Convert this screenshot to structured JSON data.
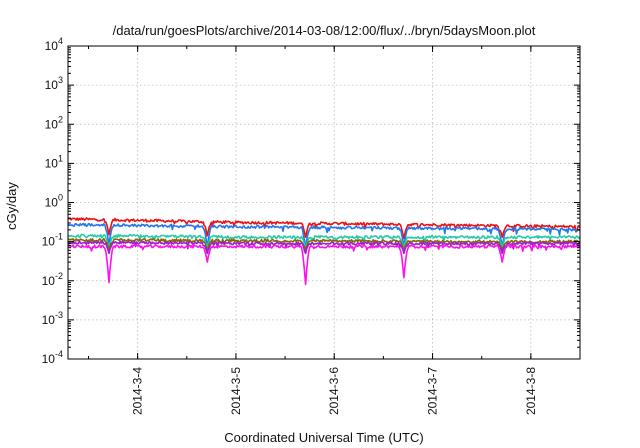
{
  "chart_data": {
    "type": "line",
    "title": "/data/run/goesPlots/archive/2014-03-08/12:00/flux/../bryn/5daysMoon.plot",
    "xlabel": "Coordinated Universal Time (UTC)",
    "ylabel": "cGy/day",
    "yscale": "log",
    "ylim": [
      0.0001,
      10000
    ],
    "xlim": [
      "2014-03-03 07:00",
      "2014-03-08 12:00"
    ],
    "x_ticks": [
      "2014-3-4",
      "2014-3-5",
      "2014-3-6",
      "2014-3-7",
      "2014-3-8"
    ],
    "y_ticks": [
      {
        "base": "10",
        "exp": "-4",
        "value": 0.0001
      },
      {
        "base": "10",
        "exp": "-3",
        "value": 0.001
      },
      {
        "base": "10",
        "exp": "-2",
        "value": 0.01
      },
      {
        "base": "10",
        "exp": "-1",
        "value": 0.1
      },
      {
        "base": "10",
        "exp": "0",
        "value": 1
      },
      {
        "base": "10",
        "exp": "1",
        "value": 10
      },
      {
        "base": "10",
        "exp": "2",
        "value": 100
      },
      {
        "base": "10",
        "exp": "3",
        "value": 1000
      },
      {
        "base": "10",
        "exp": "4",
        "value": 10000
      }
    ],
    "grid": true,
    "legend": "none",
    "dips": [
      "2014-03-03 17:00",
      "2014-03-04 17:00",
      "2014-03-05 17:00",
      "2014-03-06 17:00",
      "2014-03-07 17:00"
    ],
    "series": [
      {
        "color": "#ee1111",
        "x": [
          "2014-03-03 07:00",
          "2014-03-04 00:00",
          "2014-03-05 00:00",
          "2014-03-06 00:00",
          "2014-03-07 00:00",
          "2014-03-08 00:00",
          "2014-03-08 12:00"
        ],
        "values": [
          0.38,
          0.35,
          0.31,
          0.29,
          0.27,
          0.25,
          0.24
        ],
        "dip_values": [
          0.15,
          0.14,
          0.13,
          0.12,
          0.13
        ]
      },
      {
        "color": "#2277ee",
        "x": [
          "2014-03-03 07:00",
          "2014-03-04 00:00",
          "2014-03-05 00:00",
          "2014-03-06 00:00",
          "2014-03-07 00:00",
          "2014-03-08 00:00",
          "2014-03-08 12:00"
        ],
        "values": [
          0.27,
          0.26,
          0.24,
          0.23,
          0.22,
          0.21,
          0.2
        ],
        "dip_values": [
          0.08,
          0.07,
          0.07,
          0.07,
          0.07
        ]
      },
      {
        "color": "#22ccaa",
        "x": [
          "2014-03-03 07:00",
          "2014-03-04 00:00",
          "2014-03-05 00:00",
          "2014-03-06 00:00",
          "2014-03-07 00:00",
          "2014-03-08 00:00",
          "2014-03-08 12:00"
        ],
        "values": [
          0.14,
          0.14,
          0.13,
          0.13,
          0.13,
          0.13,
          0.13
        ],
        "dip_values": [
          0.07,
          0.07,
          0.07,
          0.07,
          0.07
        ]
      },
      {
        "color": "#886600",
        "x": [
          "2014-03-03 07:00",
          "2014-03-04 00:00",
          "2014-03-05 00:00",
          "2014-03-06 00:00",
          "2014-03-07 00:00",
          "2014-03-08 00:00",
          "2014-03-08 12:00"
        ],
        "values": [
          0.11,
          0.11,
          0.105,
          0.105,
          0.1,
          0.1,
          0.1
        ],
        "dip_values": [
          0.06,
          0.06,
          0.06,
          0.06,
          0.06
        ]
      },
      {
        "color": "#9922cc",
        "x": [
          "2014-03-03 07:00",
          "2014-03-04 00:00",
          "2014-03-05 00:00",
          "2014-03-06 00:00",
          "2014-03-07 00:00",
          "2014-03-08 00:00",
          "2014-03-08 12:00"
        ],
        "values": [
          0.095,
          0.095,
          0.09,
          0.09,
          0.09,
          0.09,
          0.09
        ],
        "dip_values": [
          0.05,
          0.05,
          0.05,
          0.05,
          0.05
        ]
      },
      {
        "color": "#ff11ee",
        "x": [
          "2014-03-03 07:00",
          "2014-03-04 00:00",
          "2014-03-05 00:00",
          "2014-03-06 00:00",
          "2014-03-07 00:00",
          "2014-03-08 00:00",
          "2014-03-08 12:00"
        ],
        "values": [
          0.075,
          0.075,
          0.075,
          0.075,
          0.075,
          0.075,
          0.075
        ],
        "dip_values": [
          0.009,
          0.03,
          0.008,
          0.012,
          0.03
        ]
      }
    ]
  }
}
